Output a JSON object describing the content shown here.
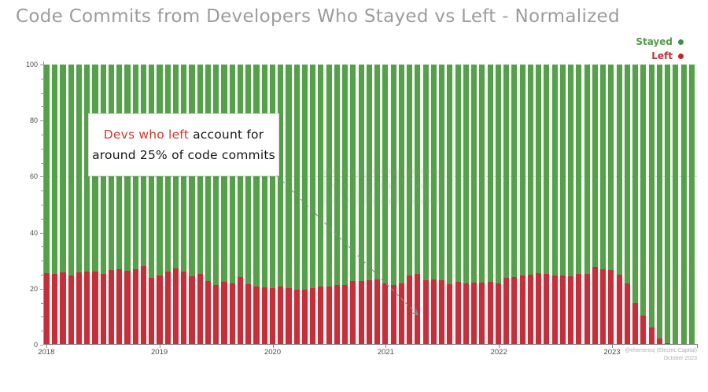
{
  "title": "Code Commits from Developers Who Stayed vs Left - Normalized",
  "legend": {
    "items": [
      {
        "label": "Stayed",
        "color": "#4f9d4b"
      },
      {
        "label": "Left",
        "color": "#c22f3c"
      }
    ]
  },
  "annotation": {
    "highlight": "Devs who left",
    "line1_rest": " account for",
    "line2": "around 25% of code commits"
  },
  "attribution": {
    "line1": "@eherrerosj (Electric Capital)",
    "line2": "October 2023"
  },
  "colors": {
    "stayed": "#55a04a",
    "left": "#c42f3c",
    "title_gray": "#9c9c9c"
  },
  "chart_data": {
    "type": "bar",
    "stacked": true,
    "normalized_to_100": true,
    "title": "Code Commits from Developers Who Stayed vs Left - Normalized",
    "xlabel": "",
    "ylabel": "",
    "ylim": [
      0,
      100
    ],
    "y_ticks": [
      0,
      20,
      40,
      60,
      80,
      100
    ],
    "y_minor_tick_step": 5,
    "x_tick_labels": [
      "2018",
      "2019",
      "2020",
      "2021",
      "2022",
      "2023"
    ],
    "bars_per_year": 14.2,
    "grid": "single faint dashed line at y=60",
    "legend_position": "top-right",
    "series": [
      {
        "name": "Left",
        "color": "#c42f3c",
        "values": [
          25.6,
          25.4,
          25.8,
          24.8,
          25.9,
          26.1,
          26.0,
          25.4,
          26.8,
          27.0,
          26.4,
          26.9,
          28.2,
          23.9,
          24.6,
          26.2,
          27.3,
          26.0,
          24.3,
          25.4,
          22.8,
          21.3,
          22.6,
          21.9,
          24.2,
          21.5,
          20.7,
          20.4,
          20.2,
          20.7,
          20.2,
          19.7,
          19.6,
          20.2,
          20.7,
          20.7,
          21.4,
          21.4,
          22.8,
          22.8,
          23.1,
          23.3,
          22.0,
          21.3,
          21.8,
          24.7,
          25.4,
          22.9,
          23.4,
          23.1,
          21.7,
          22.5,
          21.9,
          22.1,
          22.3,
          22.6,
          21.9,
          23.8,
          24.2,
          24.7,
          24.9,
          25.6,
          25.2,
          24.8,
          24.6,
          24.3,
          25.4,
          25.3,
          27.8,
          27.1,
          26.8,
          25.1,
          21.9,
          14.8,
          10.3,
          6.1,
          2.2,
          0.6,
          0,
          0,
          0
        ]
      },
      {
        "name": "Stayed",
        "color": "#55a04a",
        "values": [
          74.4,
          74.6,
          74.2,
          75.2,
          74.1,
          73.9,
          74.0,
          74.6,
          73.2,
          73.0,
          73.6,
          73.1,
          71.8,
          76.1,
          75.4,
          73.8,
          72.7,
          74.0,
          75.7,
          74.6,
          77.2,
          78.7,
          77.4,
          78.1,
          75.8,
          78.5,
          79.3,
          79.6,
          79.8,
          79.3,
          79.8,
          80.3,
          80.4,
          79.8,
          79.3,
          79.3,
          78.6,
          78.6,
          77.2,
          77.2,
          76.9,
          76.7,
          78.0,
          78.7,
          78.2,
          75.3,
          74.6,
          77.1,
          76.6,
          76.9,
          78.3,
          77.5,
          78.1,
          77.9,
          77.7,
          77.4,
          78.1,
          76.2,
          75.8,
          75.3,
          75.1,
          74.4,
          74.8,
          75.2,
          75.4,
          75.7,
          74.6,
          74.7,
          72.2,
          72.9,
          73.2,
          74.9,
          78.1,
          85.2,
          89.7,
          93.9,
          97.8,
          99.4,
          100,
          100,
          100
        ]
      }
    ]
  }
}
